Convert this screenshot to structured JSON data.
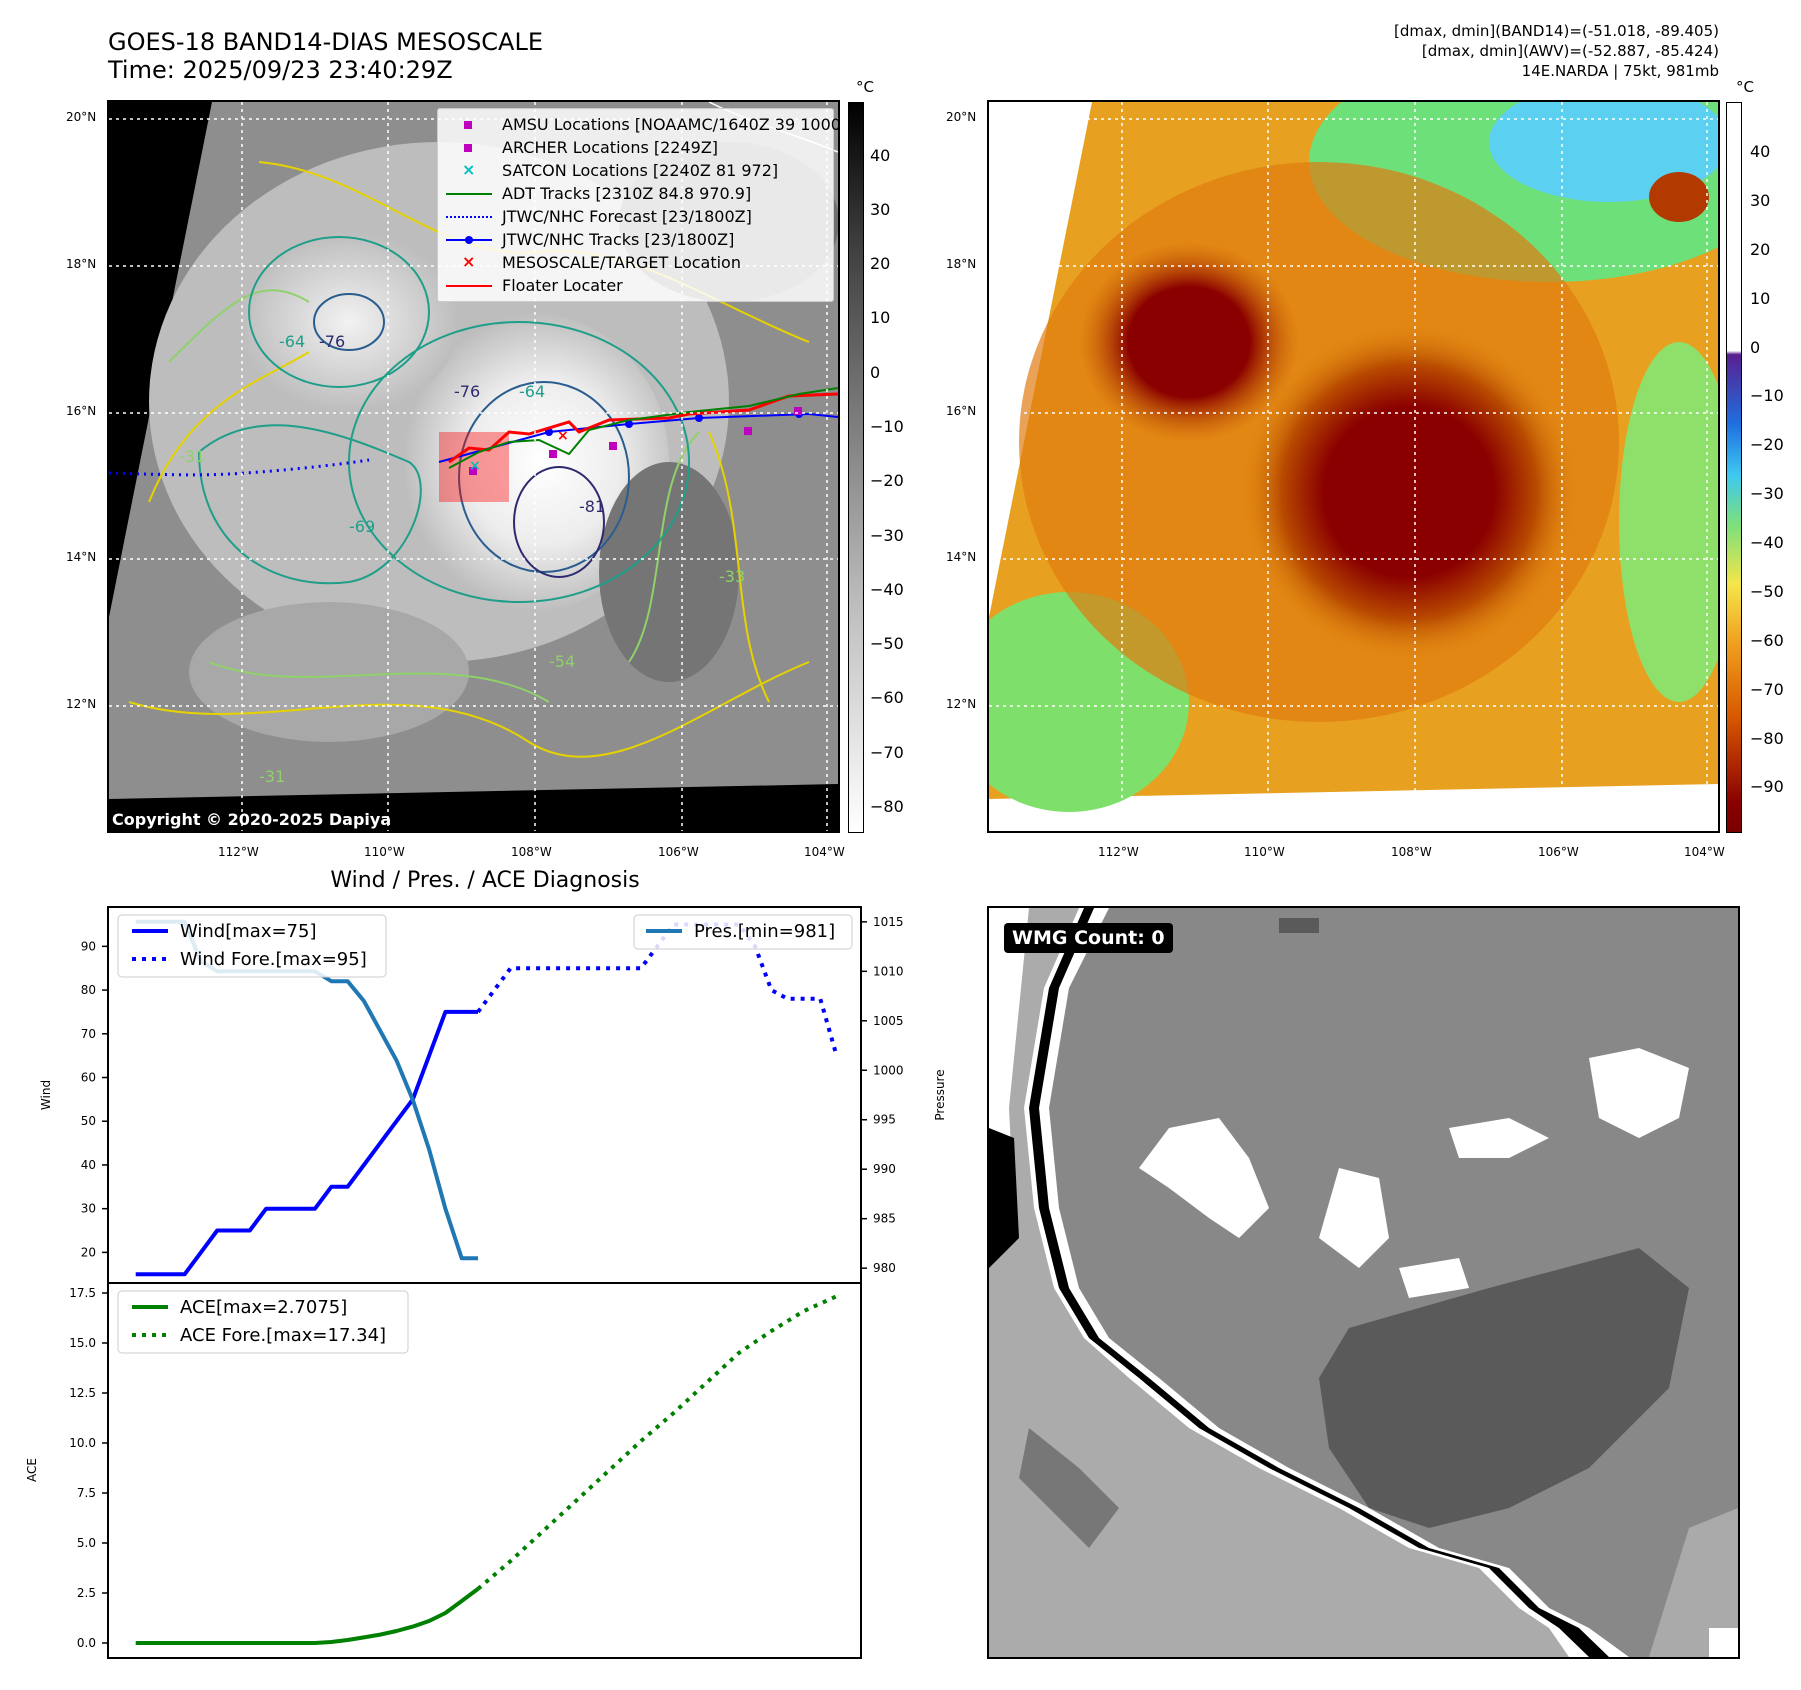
{
  "header": {
    "title_line1": "GOES-18 BAND14-DIAS MESOSCALE",
    "title_line2": "Time: 2025/09/23 23:40:29Z",
    "info_line1": "[dmax, dmin](BAND14)=(-51.018, -89.405)",
    "info_line2": "[dmax, dmin](AWV)=(-52.887, -85.424)",
    "info_line3": "14E.NARDA | 75kt, 981mb"
  },
  "map_axes": {
    "lat_labels": [
      "20°N",
      "18°N",
      "16°N",
      "14°N",
      "12°N"
    ],
    "lon_labels": [
      "112°W",
      "110°W",
      "108°W",
      "106°W",
      "104°W"
    ]
  },
  "map_left": {
    "legend": [
      {
        "label": "AMSU Locations [NOAAMC/1640Z 39 1000]",
        "marker": "square",
        "color": "#bf00bf"
      },
      {
        "label": "ARCHER Locations [2249Z]",
        "marker": "square",
        "color": "#bf00bf"
      },
      {
        "label": "SATCON Locations [2240Z 81 972]",
        "marker": "x",
        "color": "#00bfbf"
      },
      {
        "label": "ADT Tracks [2310Z 84.8 970.9]",
        "marker": "line",
        "color": "#008000"
      },
      {
        "label": "JTWC/NHC Forecast [23/1800Z]",
        "marker": "dotted",
        "color": "#0000ff"
      },
      {
        "label": "JTWC/NHC Tracks [23/1800Z]",
        "marker": "line-dot",
        "color": "#0000ff"
      },
      {
        "label": "MESOSCALE/TARGET Location",
        "marker": "x",
        "color": "#ff0000"
      },
      {
        "label": "Floater Locater",
        "marker": "line",
        "color": "#ff0000"
      }
    ],
    "contour_labels": [
      "-76",
      "-64",
      "-76",
      "-64",
      "-81",
      "-69",
      "-31",
      "-31",
      "-54",
      "-33"
    ],
    "copyright": "Copyright © 2020-2025 Dapiya",
    "colorbar": {
      "unit": "°C",
      "ticks": [
        "40",
        "30",
        "20",
        "10",
        "0",
        "−10",
        "−20",
        "−30",
        "−40",
        "−50",
        "−60",
        "−70",
        "−80"
      ]
    }
  },
  "map_right": {
    "colorbar": {
      "unit": "°C",
      "ticks": [
        "40",
        "30",
        "20",
        "10",
        "0",
        "−10",
        "−20",
        "−30",
        "−40",
        "−50",
        "−60",
        "−70",
        "−80",
        "−90"
      ]
    }
  },
  "wmg_panel": {
    "label": "WMG Count: 0"
  },
  "chart_data": [
    {
      "type": "line",
      "title": "Wind / Pres. / ACE Diagnosis",
      "ylabel": "Wind",
      "ylabel_right": "Pressure",
      "ylim": [
        13,
        99
      ],
      "ylim_right": [
        978.5,
        1016.5
      ],
      "yticks": [
        20,
        30,
        40,
        50,
        60,
        70,
        80,
        90
      ],
      "yticks_right": [
        980,
        985,
        990,
        995,
        1000,
        1005,
        1010,
        1015
      ],
      "series": [
        {
          "name": "Wind[max=75]",
          "axis": "left",
          "style": "solid",
          "color": "#0000ff",
          "x": [
            0,
            1,
            2,
            3,
            4,
            5,
            6,
            7,
            8,
            9,
            10,
            11,
            12,
            13,
            14,
            15,
            16,
            17,
            18,
            19,
            20,
            21
          ],
          "values": [
            15,
            15,
            15,
            15,
            20,
            25,
            25,
            25,
            30,
            30,
            30,
            30,
            35,
            35,
            40,
            45,
            50,
            55,
            65,
            75,
            75,
            75
          ]
        },
        {
          "name": "Wind Fore.[max=95]",
          "axis": "left",
          "style": "dotted",
          "color": "#0000ff",
          "x": [
            21,
            22,
            23,
            24,
            25,
            26,
            27,
            28,
            29,
            30,
            31,
            32,
            33,
            34,
            35,
            36,
            37,
            38,
            39,
            40,
            41,
            42,
            43
          ],
          "values": [
            75,
            80,
            85,
            85,
            85,
            85,
            85,
            85,
            85,
            85,
            85,
            90,
            95,
            95,
            95,
            95,
            95,
            90,
            80,
            78,
            78,
            78,
            65
          ]
        },
        {
          "name": "Pres.[min=981]",
          "axis": "right",
          "style": "solid",
          "color": "#1f77b4",
          "x": [
            0,
            1,
            2,
            3,
            4,
            5,
            6,
            7,
            8,
            9,
            10,
            11,
            12,
            13,
            14,
            15,
            16,
            17,
            18,
            19,
            20,
            21
          ],
          "values": [
            1015,
            1015,
            1015,
            1015,
            1011,
            1010,
            1010,
            1010,
            1010,
            1010,
            1010,
            1010,
            1009,
            1009,
            1007,
            1004,
            1001,
            997,
            992,
            986,
            981,
            981
          ]
        }
      ]
    },
    {
      "type": "line",
      "ylabel": "ACE",
      "ylim": [
        -0.75,
        18.0
      ],
      "yticks": [
        0.0,
        2.5,
        5.0,
        7.5,
        10.0,
        12.5,
        15.0,
        17.5
      ],
      "series": [
        {
          "name": "ACE[max=2.7075]",
          "style": "solid",
          "color": "#008000",
          "x": [
            0,
            2,
            4,
            6,
            8,
            10,
            11,
            12,
            13,
            14,
            15,
            16,
            17,
            18,
            19,
            20,
            21
          ],
          "values": [
            0,
            0,
            0,
            0,
            0,
            0,
            0,
            0.05,
            0.15,
            0.28,
            0.42,
            0.6,
            0.82,
            1.1,
            1.5,
            2.1,
            2.7075
          ]
        },
        {
          "name": "ACE Fore.[max=17.34]",
          "style": "dotted",
          "color": "#008000",
          "x": [
            21,
            23,
            25,
            27,
            29,
            31,
            33,
            35,
            37,
            39,
            41,
            43
          ],
          "values": [
            2.7075,
            4.1,
            5.6,
            7.1,
            8.6,
            10.1,
            11.5,
            13.0,
            14.5,
            15.6,
            16.6,
            17.34
          ]
        }
      ]
    }
  ]
}
